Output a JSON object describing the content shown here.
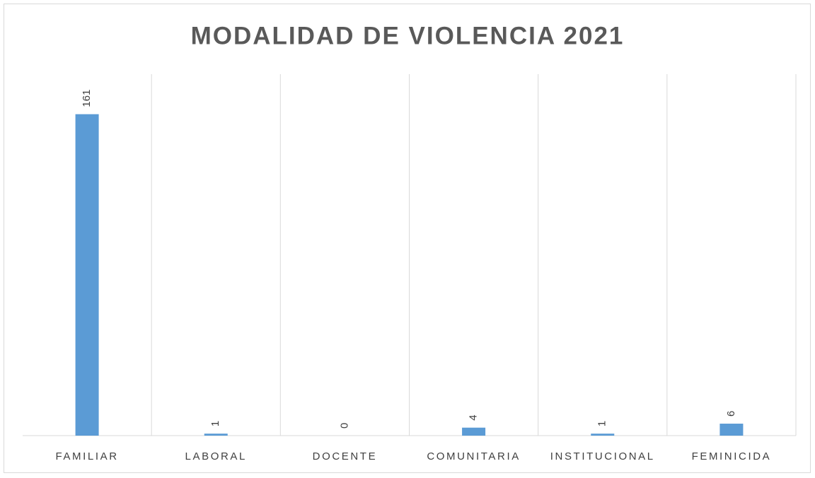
{
  "chart_data": {
    "type": "bar",
    "title": "MODALIDAD DE VIOLENCIA 2021",
    "categories": [
      "FAMILIAR",
      "LABORAL",
      "DOCENTE",
      "COMUNITARIA",
      "INSTITUCIONAL",
      "FEMINICIDA"
    ],
    "values": [
      161,
      1,
      0,
      4,
      1,
      6
    ],
    "color": "#5b9bd5",
    "ylim": [
      0,
      180
    ]
  }
}
